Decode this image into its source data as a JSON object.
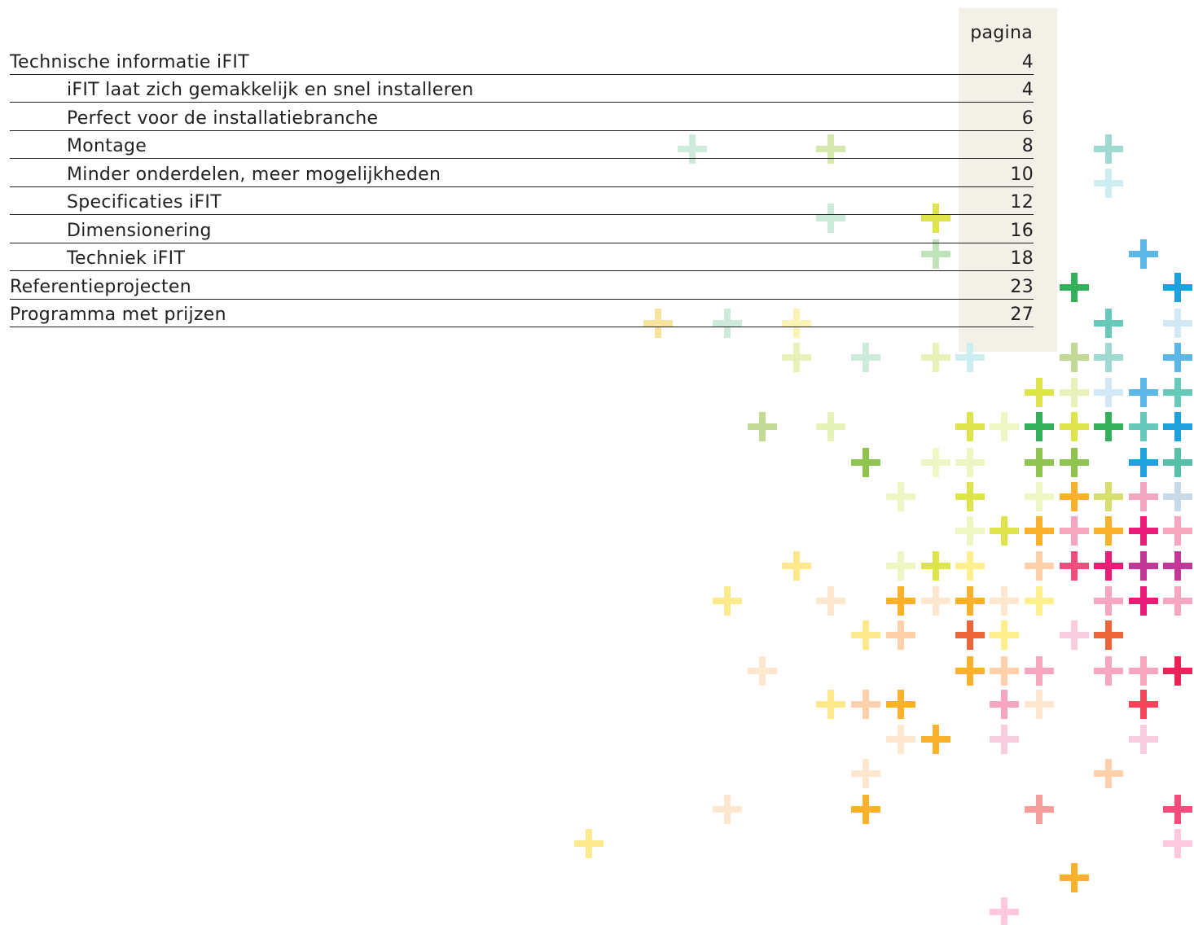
{
  "toc": {
    "page_header": "pagina",
    "entries": [
      {
        "title": "Technische informatie iFIT",
        "page": "4",
        "level": 1
      },
      {
        "title": "iFIT laat zich gemakkelijk en snel installeren",
        "page": "4",
        "level": 2
      },
      {
        "title": "Perfect voor de installatiebranche",
        "page": "6",
        "level": 2
      },
      {
        "title": "Montage",
        "page": "8",
        "level": 2
      },
      {
        "title": "Minder onderdelen, meer mogelijkheden",
        "page": "10",
        "level": 2
      },
      {
        "title": "Specificaties iFIT",
        "page": "12",
        "level": 2
      },
      {
        "title": "Dimensionering",
        "page": "16",
        "level": 2
      },
      {
        "title": "Techniek iFIT",
        "page": "18",
        "level": 2
      },
      {
        "title": "Referentieprojecten",
        "page": "23",
        "level": 1
      },
      {
        "title": "Programma met prijzen",
        "page": "27",
        "level": 1
      }
    ]
  },
  "colors": {
    "text": "#231f20",
    "page_column": "#f2f0e7"
  },
  "decoration": {
    "icon": "plus-icon",
    "palette": [
      "#cdeadb",
      "#d7e7b0",
      "#9fd9cf",
      "#cdeef0",
      "#dde54a",
      "#c0e2b8",
      "#5bb7e6",
      "#35b05a",
      "#1ea1dd",
      "#f7e39b",
      "#f9f4b5",
      "#e7f2b8",
      "#67c9b9",
      "#d2e8f5",
      "#c2da96",
      "#eef6c4",
      "#8fc450",
      "#58bfa8",
      "#fbb12b",
      "#d7df6e",
      "#f3a6c0",
      "#c8d9ea",
      "#f7a6bf",
      "#ea1c78",
      "#ffe98d",
      "#f24d7c",
      "#c33797",
      "#ffef8d",
      "#fde8cf",
      "#ef653a",
      "#f8cde0",
      "#ec2258",
      "#f2475a",
      "#ffd0a9",
      "#f59e9b",
      "#ffc8de"
    ]
  }
}
